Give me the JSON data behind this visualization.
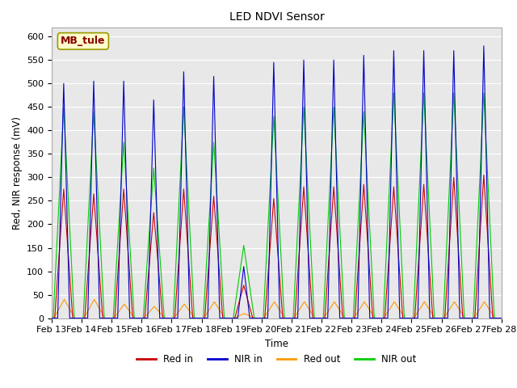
{
  "title": "LED NDVI Sensor",
  "ylabel": "Red, NIR response (mV)",
  "xlabel": "Time",
  "annotation": "MB_tule",
  "ylim": [
    0,
    620
  ],
  "colors": {
    "red_in": "#cc0000",
    "nir_in": "#0000cc",
    "red_out": "#ff9900",
    "nir_out": "#00cc00"
  },
  "legend_labels": [
    "Red in",
    "NIR in",
    "Red out",
    "NIR out"
  ],
  "tick_labels": [
    "Feb 13",
    "Feb 14",
    "Feb 15",
    "Feb 16",
    "Feb 17",
    "Feb 18",
    "Feb 19",
    "Feb 20",
    "Feb 21",
    "Feb 22",
    "Feb 23",
    "Feb 24",
    "Feb 25",
    "Feb 26",
    "Feb 27",
    "Feb 28"
  ],
  "background_color": "#e8e8e8",
  "peaks": {
    "red_in": [
      275,
      265,
      275,
      225,
      275,
      260,
      70,
      255,
      280,
      280,
      285,
      280,
      285,
      300,
      305
    ],
    "nir_in": [
      500,
      505,
      505,
      465,
      525,
      515,
      110,
      545,
      550,
      550,
      560,
      570,
      570,
      570,
      580
    ],
    "red_out": [
      40,
      40,
      30,
      25,
      30,
      35,
      10,
      35,
      35,
      35,
      35,
      35,
      35,
      35,
      35
    ],
    "nir_out": [
      450,
      440,
      375,
      320,
      450,
      375,
      155,
      430,
      450,
      450,
      440,
      480,
      480,
      480,
      480
    ]
  },
  "peak_widths": {
    "red_in": 0.3,
    "nir_in": 0.2,
    "red_out": 0.35,
    "nir_out": 0.35
  },
  "peak_offsets": {
    "red_in": 0.4,
    "nir_in": 0.4,
    "red_out": 0.42,
    "nir_out": 0.4
  }
}
